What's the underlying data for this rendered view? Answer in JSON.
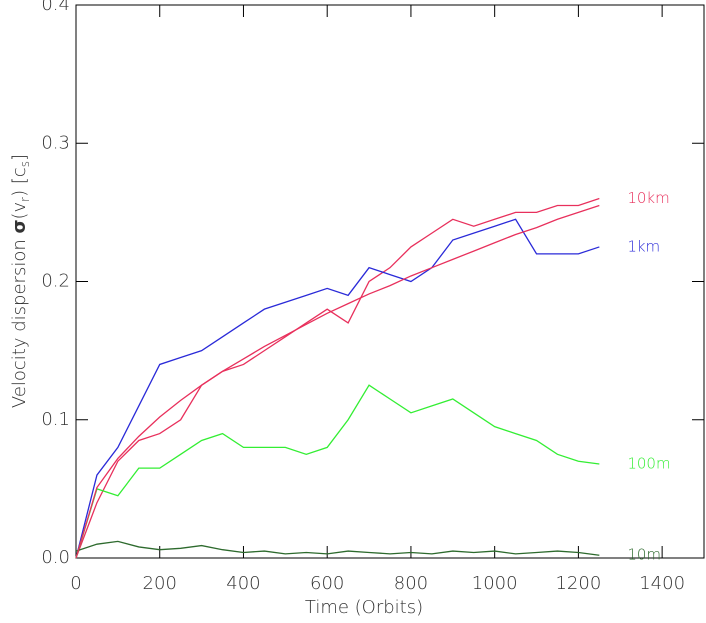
{
  "chart_data": {
    "type": "line",
    "x_label": "Time (Orbits)",
    "y_label_parts": [
      "Velocity dispersion ",
      "σ",
      "(v",
      "r",
      ") [c",
      "s",
      "]"
    ],
    "x": [
      0,
      50,
      100,
      150,
      200,
      250,
      300,
      350,
      400,
      450,
      500,
      550,
      600,
      650,
      700,
      750,
      800,
      850,
      900,
      950,
      1000,
      1050,
      1100,
      1150,
      1200,
      1250
    ],
    "series": [
      {
        "name": "10km",
        "color": "#e8305c",
        "values": [
          0.0,
          0.04,
          0.07,
          0.085,
          0.09,
          0.1,
          0.125,
          0.135,
          0.14,
          0.15,
          0.16,
          0.17,
          0.18,
          0.17,
          0.2,
          0.21,
          0.225,
          0.235,
          0.245,
          0.24,
          0.245,
          0.25,
          0.25,
          0.255,
          0.255,
          0.26
        ]
      },
      {
        "name": "1km",
        "color": "#2a2ad8",
        "values": [
          0.0,
          0.06,
          0.08,
          0.11,
          0.14,
          0.145,
          0.15,
          0.16,
          0.17,
          0.18,
          0.185,
          0.19,
          0.195,
          0.19,
          0.21,
          0.205,
          0.2,
          0.21,
          0.23,
          0.235,
          0.24,
          0.245,
          0.22,
          0.22,
          0.22,
          0.225
        ]
      },
      {
        "name": "100m",
        "color": "#33ee33",
        "values": [
          0.0,
          0.05,
          0.045,
          0.065,
          0.065,
          0.075,
          0.085,
          0.09,
          0.08,
          0.08,
          0.08,
          0.075,
          0.08,
          0.1,
          0.125,
          0.115,
          0.105,
          0.11,
          0.115,
          0.105,
          0.095,
          0.09,
          0.085,
          0.075,
          0.07,
          0.068
        ]
      },
      {
        "name": "10m",
        "color": "#2d6a2d",
        "values": [
          0.005,
          0.01,
          0.012,
          0.008,
          0.006,
          0.007,
          0.009,
          0.006,
          0.004,
          0.005,
          0.003,
          0.004,
          0.003,
          0.005,
          0.004,
          0.003,
          0.004,
          0.003,
          0.005,
          0.004,
          0.005,
          0.003,
          0.004,
          0.005,
          0.004,
          0.002
        ]
      },
      {
        "color": "#e8305c",
        "values": [
          0.0,
          0.051,
          0.072,
          0.088,
          0.102,
          0.114,
          0.125,
          0.135,
          0.144,
          0.153,
          0.161,
          0.169,
          0.177,
          0.184,
          0.191,
          0.197,
          0.204,
          0.21,
          0.216,
          0.222,
          0.228,
          0.234,
          0.239,
          0.245,
          0.25,
          0.255
        ]
      }
    ],
    "xlim": [
      0,
      1500
    ],
    "ylim": [
      0,
      0.4
    ],
    "xticks": [
      0,
      200,
      400,
      600,
      800,
      1000,
      1200,
      1400
    ],
    "yticks": [
      {
        "value": 0,
        "label": "0.0"
      },
      0.1,
      0.2,
      0.3,
      0.4
    ]
  }
}
